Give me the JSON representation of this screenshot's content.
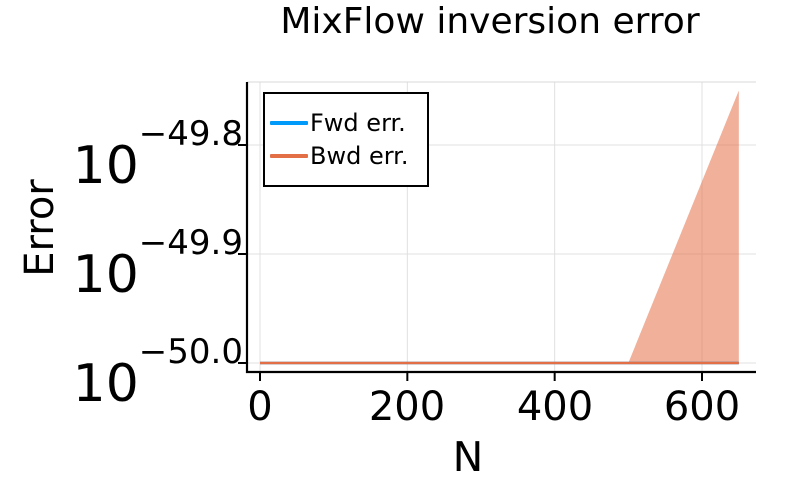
{
  "y_tick_labels": [
    {
      "base": "10",
      "exp": "−49.8"
    },
    {
      "base": "10",
      "exp": "−49.9"
    },
    {
      "base": "10",
      "exp": "−50.0"
    }
  ],
  "chart_data": {
    "type": "line",
    "title": "MixFlow inversion error",
    "xlabel": "N",
    "ylabel": "Error",
    "y_scale": "log10",
    "x_ticks": [
      0,
      200,
      400,
      600
    ],
    "y_ticks_log10": [
      -49.8,
      -49.9,
      -50.0
    ],
    "xlim": [
      -18,
      675
    ],
    "ylim_log10": [
      -50.008,
      -49.742
    ],
    "grid": true,
    "legend_position": "top-left",
    "series": [
      {
        "name": "Fwd err.",
        "color": "#009AFA",
        "x": [
          0,
          650
        ],
        "log10_y": [
          -50.0,
          -50.0
        ]
      },
      {
        "name": "Bwd err.",
        "color": "#E36F47",
        "x": [
          0,
          650
        ],
        "log10_y": [
          -50.0,
          -50.0
        ],
        "band": {
          "x": [
            0,
            500,
            650
          ],
          "upper_log10": [
            -50.0,
            -50.0,
            -49.75
          ],
          "lower_log10": [
            -50.0,
            -50.0,
            -50.0
          ],
          "fill_opacity": 0.55
        }
      }
    ]
  }
}
